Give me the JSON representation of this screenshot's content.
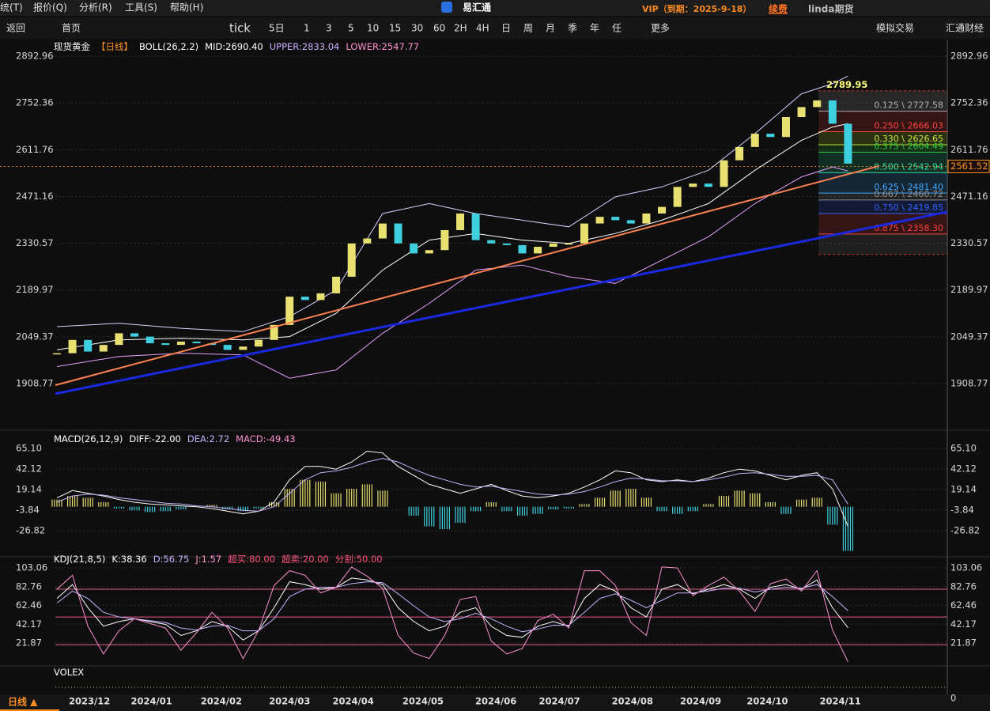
{
  "menu": {
    "items": [
      "统(T)",
      "报价(Q)",
      "分析(R)",
      "工具(S)",
      "帮助(H)"
    ],
    "logo": "易汇通",
    "vip": "VIP（到期：2025-9-18）",
    "renew": "续费",
    "user": "linda期货"
  },
  "toolbar": {
    "items": [
      "返回",
      "首页",
      "tick",
      "5日",
      "1",
      "3",
      "5",
      "10",
      "15",
      "30",
      "60",
      "2H",
      "4H",
      "日",
      "周",
      "月",
      "季",
      "年",
      "任",
      "更多",
      "模拟交易",
      "汇通财经"
    ]
  },
  "period_tab": "日线 ▲",
  "chart_data": [
    {
      "type": "candlestick",
      "header": [
        {
          "text": "现货黄金",
          "color": "#ffffff"
        },
        {
          "text": "【日线】",
          "color": "#ff9020"
        },
        {
          "text": "BOLL(26,2.2)",
          "color": "#ffffff"
        },
        {
          "text": "MID:2690.40",
          "color": "#ffffff"
        },
        {
          "text": "UPPER:2833.04",
          "color": "#c8b0ff"
        },
        {
          "text": "LOWER:2547.77",
          "color": "#ff90d0"
        }
      ],
      "close": [
        2000,
        2040,
        2005,
        2025,
        2060,
        2050,
        2030,
        2025,
        2035,
        2030,
        2025,
        2010,
        2020,
        2040,
        2085,
        2170,
        2160,
        2180,
        2230,
        2330,
        2345,
        2390,
        2330,
        2300,
        2310,
        2370,
        2420,
        2340,
        2330,
        2325,
        2300,
        2320,
        2330,
        2330,
        2390,
        2410,
        2400,
        2390,
        2420,
        2440,
        2500,
        2510,
        2500,
        2580,
        2620,
        2660,
        2650,
        2710,
        2740,
        2760,
        2690,
        2570
      ],
      "up_color": "#e8e070",
      "down_color": "#3fd0e0",
      "boll": {
        "x": [
          0,
          4,
          8,
          12,
          15,
          18,
          21,
          24,
          27,
          30,
          33,
          36,
          39,
          42,
          45,
          48,
          50,
          51
        ],
        "lines": [
          {
            "color": "#d8d0ff",
            "values": [
              2080,
              2090,
              2075,
              2065,
              2110,
              2190,
              2420,
              2450,
              2420,
              2400,
              2380,
              2470,
              2500,
              2550,
              2660,
              2780,
              2810,
              2833.04
            ]
          },
          {
            "color": "#ffffff",
            "values": [
              2010,
              2040,
              2045,
              2040,
              2050,
              2120,
              2250,
              2340,
              2360,
              2340,
              2330,
              2360,
              2400,
              2450,
              2550,
              2640,
              2680,
              2690.4
            ]
          },
          {
            "color": "#e8a0ff",
            "values": [
              1960,
              1990,
              2000,
              1995,
              1925,
              1950,
              2060,
              2150,
              2250,
              2265,
              2230,
              2210,
              2280,
              2350,
              2450,
              2530,
              2560,
              2547.77
            ]
          }
        ]
      },
      "trendlines": [
        {
          "color": "#ff8050",
          "x": [
            -0.1,
            53
          ],
          "values": [
            1904,
            2563
          ]
        },
        {
          "color": "#1a28e0",
          "x": [
            -0.1,
            57.4
          ],
          "values": [
            1878,
            2425
          ]
        }
      ],
      "fib": {
        "x": [
          49.1,
          57.4
        ],
        "range": [
          2296.76,
          2789.12
        ],
        "levels": [
          {
            "value": 2727.58,
            "label": "0.125 \\ 2727.58",
            "color": "#b0b0b0"
          },
          {
            "value": 2666.03,
            "label": "0.250 \\ 2666.03",
            "color": "#ff4040"
          },
          {
            "value": 2626.65,
            "label": "0.330 \\ 2626.65",
            "color": "#c8e830"
          },
          {
            "value": 2604.49,
            "label": "0.375 \\ 2604.49",
            "color": "#30d040"
          },
          {
            "value": 2542.94,
            "label": "0.500 \\ 2542.94",
            "color": "#30e0a0"
          },
          {
            "value": 2481.4,
            "label": "0.625 \\ 2481.40",
            "color": "#40a8ff"
          },
          {
            "value": 2460.72,
            "label": "0.667 \\ 2460.72",
            "color": "#909090"
          },
          {
            "value": 2419.85,
            "label": "0.750 \\ 2419.85",
            "color": "#3060ff"
          },
          {
            "value": 2358.3,
            "label": "0.875 \\ 2358.30",
            "color": "#ff4040"
          }
        ]
      },
      "high": {
        "x": 49.6,
        "value": 2789.95
      },
      "last_price": 2561.52,
      "xlim": [
        -0.1,
        57.4
      ],
      "xticks": [
        {
          "value": 2.1,
          "label": "2023/12"
        },
        {
          "value": 6.1,
          "label": "2024/01"
        },
        {
          "value": 10.6,
          "label": "2024/02"
        },
        {
          "value": 15,
          "label": "2024/03"
        },
        {
          "value": 19.1,
          "label": "2024/04"
        },
        {
          "value": 23.6,
          "label": "2024/05"
        },
        {
          "value": 28.3,
          "label": "2024/06"
        },
        {
          "value": 32.4,
          "label": "2024/07"
        },
        {
          "value": 37.1,
          "label": "2024/08"
        },
        {
          "value": 41.5,
          "label": "2024/09"
        },
        {
          "value": 45.8,
          "label": "2024/10"
        },
        {
          "value": 50.5,
          "label": "2024/11"
        }
      ],
      "ylim": [
        1778,
        2943
      ],
      "yticks": [
        2892.96,
        2752.36,
        2611.76,
        2471.16,
        2330.57,
        2189.97,
        2049.37,
        1908.77
      ]
    },
    {
      "type": "macd",
      "header": [
        {
          "text": "MACD(26,12,9)",
          "color": "#ffffff"
        },
        {
          "text": "DIFF:-22.00",
          "color": "#ffffff"
        },
        {
          "text": "DEA:2.72",
          "color": "#c8b0ff"
        },
        {
          "text": "MACD:-49.43",
          "color": "#ff90d0"
        }
      ],
      "values": [
        8,
        12,
        10,
        5,
        -2,
        -4,
        -6,
        -5,
        -3,
        0,
        2,
        -3,
        -5,
        -2,
        5,
        20,
        30,
        28,
        15,
        20,
        25,
        18,
        0,
        -10,
        -22,
        -25,
        -18,
        -5,
        5,
        -5,
        -10,
        -8,
        -3,
        -2,
        3,
        10,
        18,
        20,
        10,
        -5,
        -8,
        -5,
        3,
        12,
        18,
        15,
        5,
        -8,
        8,
        10,
        -20,
        -49.43
      ],
      "up_color": "#e8e070",
      "down_color": "#3fd0e0",
      "series": [
        {
          "color": "#ffffff",
          "values": [
            10,
            18,
            15,
            12,
            8,
            5,
            3,
            2,
            1,
            0,
            -2,
            -5,
            -8,
            -5,
            5,
            30,
            45,
            45,
            42,
            50,
            62,
            60,
            45,
            35,
            25,
            20,
            15,
            20,
            25,
            18,
            12,
            10,
            12,
            15,
            22,
            30,
            40,
            38,
            30,
            28,
            30,
            28,
            32,
            38,
            42,
            40,
            35,
            30,
            35,
            38,
            20,
            -22
          ]
        },
        {
          "color": "#c8b0ff",
          "values": [
            5,
            12,
            14,
            13,
            10,
            8,
            6,
            4,
            3,
            1,
            0,
            -2,
            -4,
            -5,
            0,
            15,
            30,
            38,
            40,
            44,
            50,
            54,
            50,
            42,
            35,
            30,
            25,
            22,
            23,
            20,
            17,
            14,
            13,
            14,
            17,
            22,
            28,
            32,
            31,
            29,
            29,
            28,
            30,
            33,
            37,
            38,
            36,
            34,
            34,
            35,
            30,
            2.72
          ]
        }
      ],
      "ylim": [
        -52.4,
        81.9
      ],
      "yticks": [
        {
          "value": 65.1,
          "label": "65.10"
        },
        42.12,
        19.14,
        -3.84,
        -26.82
      ]
    },
    {
      "type": "kdj",
      "header": [
        {
          "text": "KDJ(21,8,5)",
          "color": "#ffffff"
        },
        {
          "text": "K:38.36",
          "color": "#ffffff"
        },
        {
          "text": "D:56.75",
          "color": "#c8b0ff"
        },
        {
          "text": "J:1.57",
          "color": "#ff90d0"
        },
        {
          "text": "超买:80.00",
          "color": "#ff5080"
        },
        {
          "text": "超卖:20.00",
          "color": "#ff5080"
        },
        {
          "text": "分割:50.00",
          "color": "#ff5080"
        }
      ],
      "levels": [
        80,
        50,
        20
      ],
      "level_color": "#e06088",
      "series": [
        {
          "color": "#ffffff",
          "values": [
            70,
            85,
            60,
            40,
            45,
            48,
            45,
            42,
            30,
            35,
            45,
            40,
            25,
            35,
            60,
            88,
            85,
            80,
            82,
            92,
            90,
            85,
            60,
            45,
            35,
            40,
            55,
            60,
            40,
            30,
            28,
            40,
            45,
            40,
            70,
            85,
            78,
            60,
            50,
            80,
            85,
            75,
            80,
            85,
            80,
            70,
            82,
            85,
            80,
            90,
            60,
            38.36
          ]
        },
        {
          "color": "#c8b0ff",
          "values": [
            65,
            78,
            70,
            55,
            50,
            48,
            46,
            44,
            38,
            36,
            40,
            41,
            35,
            35,
            48,
            72,
            80,
            82,
            82,
            86,
            88,
            87,
            75,
            62,
            50,
            45,
            48,
            54,
            48,
            40,
            34,
            37,
            41,
            41,
            55,
            70,
            75,
            68,
            60,
            68,
            76,
            76,
            78,
            81,
            81,
            77,
            80,
            82,
            81,
            85,
            72,
            56.75
          ]
        },
        {
          "color": "#ff90d0",
          "values": [
            80,
            95,
            40,
            10,
            35,
            48,
            43,
            38,
            14,
            33,
            55,
            38,
            5,
            35,
            84,
            100,
            95,
            76,
            82,
            104,
            94,
            81,
            30,
            11,
            5,
            30,
            69,
            72,
            24,
            10,
            16,
            46,
            53,
            38,
            100,
            100,
            84,
            44,
            30,
            104,
            103,
            73,
            84,
            93,
            78,
            56,
            86,
            91,
            78,
            100,
            36,
            1.57
          ]
        }
      ],
      "ylim": [
        -1.2,
        109.9
      ],
      "yticks": [
        103.06,
        82.76,
        62.46,
        42.17,
        21.87
      ]
    },
    {
      "type": "volume",
      "header": [
        {
          "text": "VOLEX",
          "color": "#ffffff"
        }
      ],
      "yticks": [
        0
      ]
    }
  ]
}
